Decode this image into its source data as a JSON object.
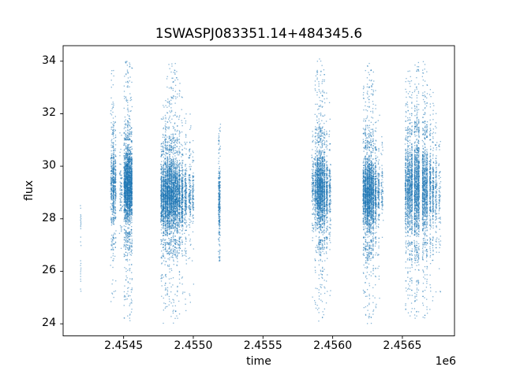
{
  "chart_data": {
    "type": "scatter",
    "title": "1SWASPJ083351.14+484345.6",
    "xlabel": "time",
    "ylabel": "flux",
    "x_offset_label": "1e6",
    "marker_color": "#1f77b4",
    "marker_alpha": 0.55,
    "marker_size_px": 1.3,
    "axis_color": "#000000",
    "background_color": "#ffffff",
    "grid": false,
    "legend": null,
    "xlim": [
      2454066,
      2456874
    ],
    "ylim": [
      23.54,
      34.59
    ],
    "xticks": [
      {
        "value": 2454500,
        "label": "2.4545"
      },
      {
        "value": 2455000,
        "label": "2.4550"
      },
      {
        "value": 2455500,
        "label": "2.4555"
      },
      {
        "value": 2456000,
        "label": "2.4560"
      },
      {
        "value": 2456500,
        "label": "2.4565"
      }
    ],
    "yticks": [
      {
        "value": 24,
        "label": "24"
      },
      {
        "value": 26,
        "label": "26"
      },
      {
        "value": 28,
        "label": "28"
      },
      {
        "value": 30,
        "label": "30"
      },
      {
        "value": 32,
        "label": "32"
      },
      {
        "value": 34,
        "label": "34"
      }
    ],
    "sparse_points": [
      [
        2454190,
        28.5
      ],
      [
        2454192,
        28.4
      ],
      [
        2454191,
        28.15
      ],
      [
        2454193,
        28.1
      ],
      [
        2454192,
        28.05
      ],
      [
        2454194,
        28.0
      ],
      [
        2454191,
        27.95
      ],
      [
        2454193,
        27.9
      ],
      [
        2454192,
        27.85
      ],
      [
        2454194,
        27.8
      ],
      [
        2454193,
        27.75
      ],
      [
        2454191,
        27.7
      ],
      [
        2454192,
        27.62
      ],
      [
        2454193,
        27.3
      ],
      [
        2454192,
        27.12
      ],
      [
        2454194,
        26.98
      ],
      [
        2454191,
        26.4
      ],
      [
        2454193,
        26.3
      ],
      [
        2454192,
        26.22
      ],
      [
        2454194,
        26.12
      ],
      [
        2454192,
        26.05
      ],
      [
        2454193,
        25.98
      ],
      [
        2454191,
        25.9
      ],
      [
        2454193,
        25.8
      ],
      [
        2454192,
        25.7
      ],
      [
        2454194,
        25.62
      ],
      [
        2454192,
        25.32
      ],
      [
        2454193,
        25.24
      ]
    ],
    "cluster_columns_format": [
      "t_center",
      "t_width",
      "n_points",
      "core_flux_lo",
      "core_flux_hi",
      "tail_flux_min",
      "tail_flux_max"
    ],
    "cluster_columns": [
      [
        2454413,
        12,
        160,
        27.6,
        31.2,
        24.6,
        33.9
      ],
      [
        2454427,
        12,
        320,
        27.6,
        31.0,
        24.5,
        33.9
      ],
      [
        2454441,
        8,
        140,
        27.8,
        30.8,
        25.0,
        32.5
      ],
      [
        2454481,
        20,
        80,
        27.9,
        30.2,
        26.5,
        31.6
      ],
      [
        2454506,
        8,
        260,
        27.8,
        30.6,
        24.2,
        33.5
      ],
      [
        2454517,
        9,
        480,
        27.7,
        30.8,
        24.0,
        34.0
      ],
      [
        2454530,
        11,
        620,
        27.7,
        30.9,
        24.0,
        34.15
      ],
      [
        2454544,
        11,
        560,
        27.7,
        30.8,
        24.1,
        34.0
      ],
      [
        2454557,
        9,
        380,
        27.8,
        30.7,
        24.2,
        33.8
      ],
      [
        2454772,
        10,
        240,
        27.4,
        30.2,
        24.2,
        32.0
      ],
      [
        2454786,
        10,
        320,
        27.3,
        30.3,
        24.0,
        32.5
      ],
      [
        2454800,
        10,
        380,
        27.3,
        30.4,
        24.0,
        33.0
      ],
      [
        2454814,
        10,
        420,
        27.3,
        30.4,
        23.9,
        33.5
      ],
      [
        2454828,
        10,
        420,
        27.3,
        30.4,
        24.0,
        34.0
      ],
      [
        2454842,
        10,
        400,
        27.4,
        30.4,
        24.0,
        34.1
      ],
      [
        2454856,
        10,
        380,
        27.4,
        30.4,
        24.0,
        34.1
      ],
      [
        2454870,
        10,
        360,
        27.4,
        30.3,
        24.0,
        34.0
      ],
      [
        2454884,
        10,
        340,
        27.4,
        30.3,
        24.1,
        33.8
      ],
      [
        2454900,
        12,
        300,
        27.5,
        30.3,
        24.1,
        33.5
      ],
      [
        2454920,
        14,
        260,
        27.5,
        30.2,
        24.2,
        33.0
      ],
      [
        2454945,
        16,
        200,
        27.5,
        30.2,
        24.3,
        32.5
      ],
      [
        2454975,
        18,
        150,
        27.6,
        30.1,
        24.5,
        32.0
      ],
      [
        2454998,
        12,
        90,
        27.7,
        30.0,
        25.0,
        31.5
      ],
      [
        2455187,
        14,
        280,
        27.0,
        30.4,
        26.4,
        31.7
      ],
      [
        2455858,
        14,
        120,
        28.0,
        30.6,
        25.0,
        33.0
      ],
      [
        2455876,
        10,
        200,
        27.6,
        30.6,
        24.4,
        33.5
      ],
      [
        2455890,
        8,
        300,
        27.5,
        30.7,
        24.2,
        34.0
      ],
      [
        2455902,
        8,
        380,
        27.4,
        30.7,
        24.1,
        34.1
      ],
      [
        2455914,
        8,
        400,
        27.4,
        30.7,
        24.1,
        34.1
      ],
      [
        2455926,
        8,
        360,
        27.4,
        30.6,
        24.1,
        34.0
      ],
      [
        2455940,
        10,
        300,
        27.5,
        30.6,
        24.2,
        33.8
      ],
      [
        2455958,
        12,
        220,
        27.5,
        30.5,
        24.3,
        33.3
      ],
      [
        2455980,
        14,
        130,
        27.7,
        30.4,
        24.6,
        32.5
      ],
      [
        2456222,
        10,
        260,
        27.5,
        30.5,
        24.3,
        33.2
      ],
      [
        2456236,
        9,
        380,
        27.4,
        30.5,
        24.1,
        33.8
      ],
      [
        2456249,
        8,
        450,
        27.3,
        30.5,
        24.0,
        34.0
      ],
      [
        2456262,
        9,
        450,
        27.3,
        30.5,
        24.0,
        34.0
      ],
      [
        2456276,
        9,
        420,
        27.4,
        30.5,
        24.0,
        33.9
      ],
      [
        2456290,
        10,
        340,
        27.4,
        30.4,
        24.1,
        33.6
      ],
      [
        2456308,
        12,
        240,
        27.5,
        30.4,
        24.2,
        33.0
      ],
      [
        2456330,
        14,
        140,
        27.6,
        30.3,
        24.5,
        32.3
      ],
      [
        2456355,
        14,
        70,
        27.8,
        30.2,
        25.0,
        31.5
      ],
      [
        2456525,
        10,
        220,
        27.4,
        30.8,
        24.5,
        33.4
      ],
      [
        2456540,
        9,
        300,
        27.3,
        30.9,
        24.3,
        33.8
      ],
      [
        2456554,
        8,
        300,
        27.3,
        31.0,
        24.2,
        34.0
      ],
      [
        2456568,
        8,
        320,
        27.3,
        31.0,
        24.2,
        34.0
      ],
      [
        2456590,
        9,
        380,
        27.2,
        31.1,
        24.1,
        34.1
      ],
      [
        2456604,
        8,
        420,
        27.2,
        31.2,
        24.1,
        34.2
      ],
      [
        2456617,
        8,
        380,
        27.3,
        31.1,
        24.1,
        34.1
      ],
      [
        2456648,
        9,
        350,
        27.3,
        31.0,
        24.2,
        34.0
      ],
      [
        2456662,
        8,
        320,
        27.3,
        31.0,
        24.2,
        33.9
      ],
      [
        2456676,
        8,
        280,
        27.4,
        30.9,
        24.3,
        33.6
      ],
      [
        2456700,
        10,
        220,
        27.4,
        30.8,
        24.4,
        33.3
      ],
      [
        2456720,
        10,
        170,
        27.5,
        30.7,
        24.5,
        33.0
      ],
      [
        2456742,
        12,
        120,
        27.5,
        30.6,
        24.8,
        32.4
      ],
      [
        2456768,
        14,
        70,
        27.6,
        30.4,
        25.2,
        31.8
      ]
    ]
  }
}
